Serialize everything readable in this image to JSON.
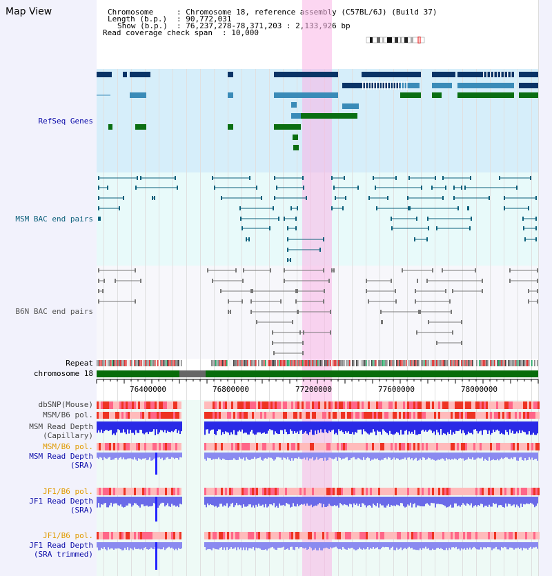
{
  "map_title": "Map View",
  "info": {
    "chromosome_key": "Chromosome",
    "chromosome_val": ": Chromosome 18, reference assembly (C57BL/6J) (Build 37)",
    "length_key": "Length (b.p.)",
    "length_val": ": 90,772,031",
    "show_key": "Show (b.p.)",
    "show_val": ": 76,237,278-78,371,203 : 2,133,926 bp",
    "span_key": "Read coverage check span",
    "span_val": ": 10,000"
  },
  "tracks": {
    "refseq": "RefSeq Genes",
    "msm_bac": "MSM BAC end pairs",
    "b6n_bac": "B6N BAC end pairs",
    "repeat": "Repeat",
    "chromosome": "chromosome 18",
    "dbsnp": "dbSNP(Mouse)",
    "msm_b6_pol": "MSM/B6 pol.",
    "msm_depth_cap_1": "MSM Read Depth",
    "msm_depth_cap_2": "(Capillary)",
    "msm_b6_pol_2": "MSM/B6 pol.",
    "msm_depth_sra_1": "MSM Read Depth",
    "msm_depth_sra_2": "(SRA)",
    "jf1_b6_pol": "JF1/B6 pol.",
    "jf1_depth_sra_1": "JF1 Read Depth",
    "jf1_depth_sra_2": "(SRA)",
    "jf1_b6_pol_2": "JF1/B6 pol.",
    "jf1_depth_trim_1": "JF1 Read Depth",
    "jf1_depth_trim_2": "(SRA trimmed)"
  },
  "axis_ticks": [
    "76400000",
    "76800000",
    "77200000",
    "77600000",
    "78000000"
  ],
  "colors": {
    "refseq_bg": "#d6eefa",
    "bac_bg": "#e8fafa",
    "gene_dark": "#0a3366",
    "gene_mid": "#3a8bb8",
    "gene_green": "#0a6e12",
    "label_blue": "#0a0aa8",
    "label_teal": "#0a5f7a",
    "label_orange": "#e09a00",
    "label_gray": "#555555",
    "highlight": "#f7c6ee"
  }
}
